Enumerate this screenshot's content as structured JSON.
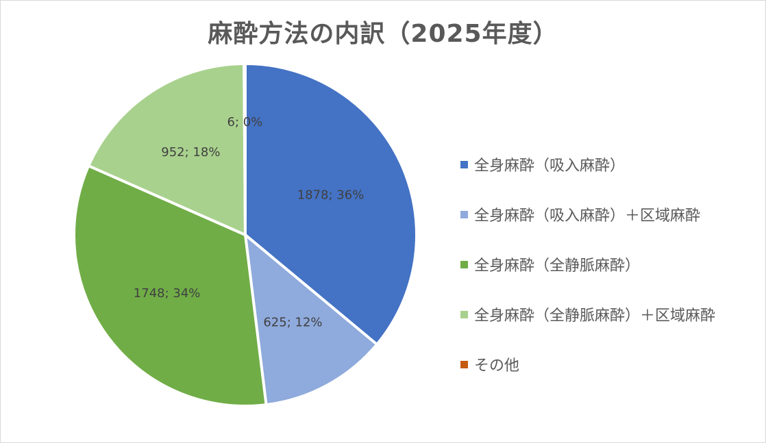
{
  "chart_data": {
    "type": "pie",
    "title": "麻酔方法の内訳（2025年度）",
    "categories": [
      "全身麻酔（吸入麻酔）",
      "全身麻酔（吸入麻酔）＋区域麻酔",
      "全身麻酔（全静脈麻酔）",
      "全身麻酔（全静脈麻酔）＋区域麻酔",
      "その他"
    ],
    "values": [
      1878,
      625,
      1748,
      952,
      6
    ],
    "data_labels": [
      "1878; 36%",
      "625; 12%",
      "1748; 34%",
      "952; 18%",
      "6; 0%"
    ],
    "colors": [
      "#4472C4",
      "#8FAADC",
      "#70AD47",
      "#A9D18E",
      "#C55A11"
    ],
    "legend_position": "right"
  }
}
